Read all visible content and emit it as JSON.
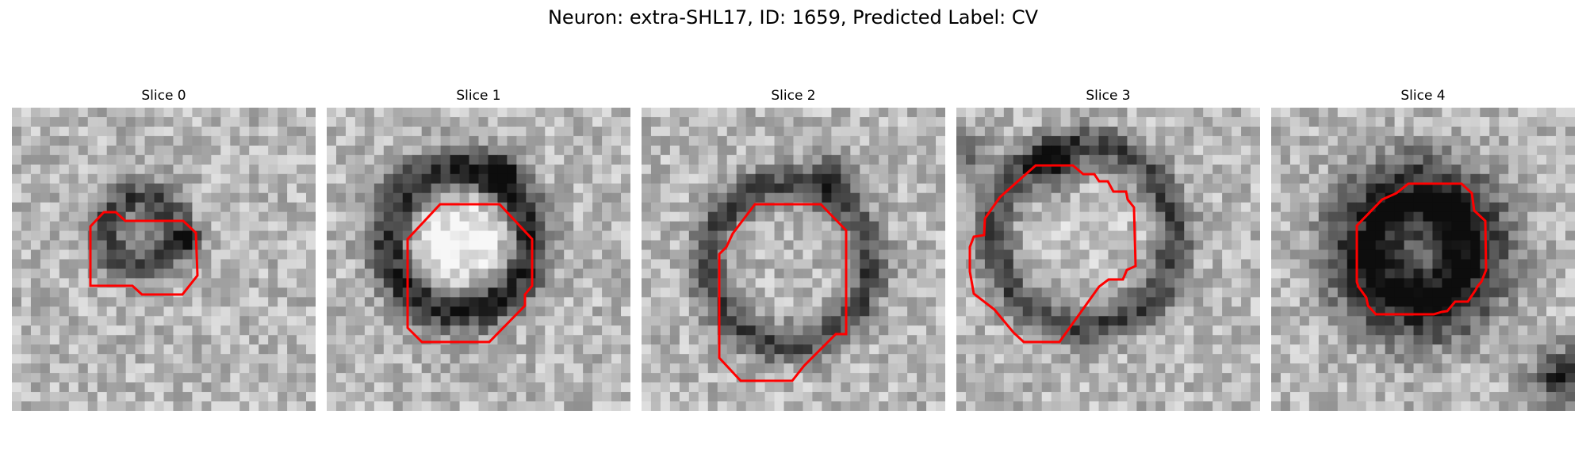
{
  "figure": {
    "title": "Neuron: extra-SHL17, ID: 1659, Predicted Label: CV",
    "contour_color": "#ff0000"
  },
  "panels": [
    {
      "title": "Slice 0"
    },
    {
      "title": "Slice 1"
    },
    {
      "title": "Slice 2"
    },
    {
      "title": "Slice 3"
    },
    {
      "title": "Slice 4"
    }
  ]
}
